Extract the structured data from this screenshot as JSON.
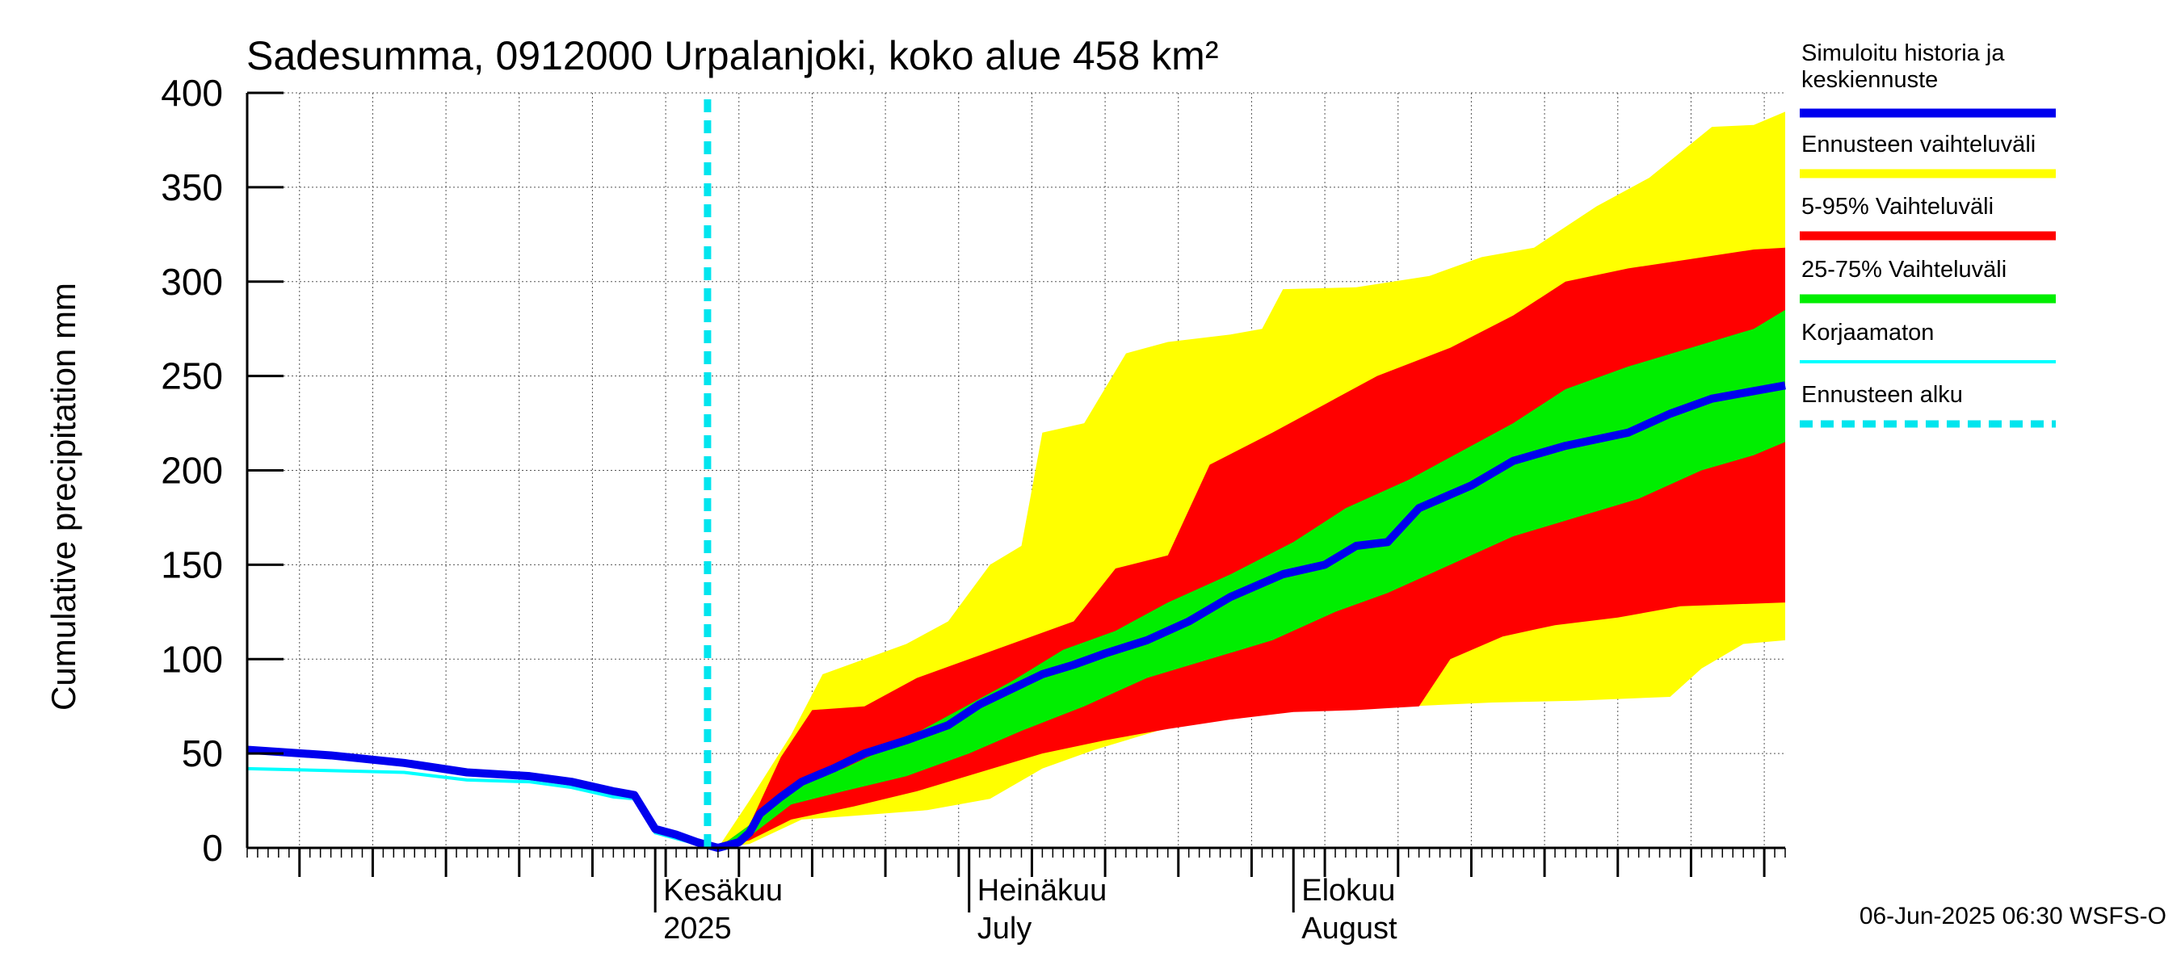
{
  "title": "Sadesumma, 0912000 Urpalanjoki, koko alue 458 km²",
  "footer": "06-Jun-2025 06:30 WSFS-O",
  "chart_data": {
    "type": "area",
    "title": "Sadesumma, 0912000 Urpalanjoki, koko alue 458 km²",
    "ylabel": "Cumulative precipitation   mm",
    "xlabel": "",
    "ylim": [
      0,
      400
    ],
    "yticks": [
      0,
      50,
      100,
      150,
      200,
      250,
      300,
      350,
      400
    ],
    "xlim": [
      "2025-04-23",
      "2025-09-17"
    ],
    "grid": true,
    "legend_position": "right",
    "x_axis_labels": [
      {
        "line1": "Kesäkuu",
        "line2": "2025",
        "date": "2025-06-01"
      },
      {
        "line1": "Heinäkuu",
        "line2": "July",
        "date": "2025-07-01"
      },
      {
        "line1": "Elokuu",
        "line2": "August",
        "date": "2025-08-01"
      }
    ],
    "forecast_start": "2025-06-06",
    "legend": [
      {
        "label1": "Simuloitu historia ja",
        "label2": "keskiennuste",
        "color": "#0000ee",
        "style": "thick"
      },
      {
        "label1": "Ennusteen vaihteluväli",
        "label2": "",
        "color": "#ffff00",
        "style": "thick"
      },
      {
        "label1": "5-95% Vaihteluväli",
        "label2": "",
        "color": "#ff0000",
        "style": "thick"
      },
      {
        "label1": "25-75% Vaihteluväli",
        "label2": "",
        "color": "#00ee00",
        "style": "thick"
      },
      {
        "label1": "Korjaamaton",
        "label2": "",
        "color": "#00ffff",
        "style": "thin"
      },
      {
        "label1": "Ennusteen alku",
        "label2": "",
        "color": "#00e5ee",
        "style": "dashed"
      }
    ],
    "series": [
      {
        "name": "Simuloitu historia ja keskiennuste",
        "color": "#0000ee",
        "points": [
          [
            "2025-04-23",
            52
          ],
          [
            "2025-05-01",
            49
          ],
          [
            "2025-05-08",
            45
          ],
          [
            "2025-05-14",
            40
          ],
          [
            "2025-05-20",
            38
          ],
          [
            "2025-05-24",
            35
          ],
          [
            "2025-05-28",
            30
          ],
          [
            "2025-05-30",
            28
          ],
          [
            "2025-06-01",
            10
          ],
          [
            "2025-06-03",
            7
          ],
          [
            "2025-06-05",
            3
          ],
          [
            "2025-06-07",
            0
          ],
          [
            "2025-06-09",
            3
          ],
          [
            "2025-06-10",
            8
          ],
          [
            "2025-06-11",
            18
          ],
          [
            "2025-06-13",
            27
          ],
          [
            "2025-06-15",
            35
          ],
          [
            "2025-06-18",
            42
          ],
          [
            "2025-06-21",
            50
          ],
          [
            "2025-06-25",
            57
          ],
          [
            "2025-06-29",
            65
          ],
          [
            "2025-07-02",
            76
          ],
          [
            "2025-07-05",
            84
          ],
          [
            "2025-07-08",
            92
          ],
          [
            "2025-07-11",
            97
          ],
          [
            "2025-07-14",
            103
          ],
          [
            "2025-07-18",
            110
          ],
          [
            "2025-07-22",
            120
          ],
          [
            "2025-07-26",
            133
          ],
          [
            "2025-07-31",
            145
          ],
          [
            "2025-08-04",
            150
          ],
          [
            "2025-08-07",
            160
          ],
          [
            "2025-08-10",
            162
          ],
          [
            "2025-08-13",
            180
          ],
          [
            "2025-08-18",
            192
          ],
          [
            "2025-08-22",
            205
          ],
          [
            "2025-08-27",
            213
          ],
          [
            "2025-09-02",
            220
          ],
          [
            "2025-09-06",
            230
          ],
          [
            "2025-09-10",
            238
          ],
          [
            "2025-09-14",
            242
          ],
          [
            "2025-09-17",
            245
          ]
        ]
      },
      {
        "name": "Korjaamaton",
        "color": "#00ffff",
        "points": [
          [
            "2025-04-23",
            42
          ],
          [
            "2025-05-08",
            40
          ],
          [
            "2025-05-14",
            36
          ],
          [
            "2025-05-20",
            35
          ],
          [
            "2025-05-24",
            32
          ],
          [
            "2025-05-28",
            27
          ],
          [
            "2025-05-30",
            26
          ],
          [
            "2025-06-01",
            8
          ],
          [
            "2025-06-03",
            5
          ],
          [
            "2025-06-05",
            2
          ],
          [
            "2025-06-07",
            0
          ]
        ]
      }
    ],
    "bands": [
      {
        "name": "Ennusteen vaihteluväli",
        "color": "#ffff00",
        "upper": [
          [
            "2025-06-07",
            0
          ],
          [
            "2025-06-10",
            25
          ],
          [
            "2025-06-14",
            60
          ],
          [
            "2025-06-17",
            92
          ],
          [
            "2025-06-21",
            100
          ],
          [
            "2025-06-25",
            108
          ],
          [
            "2025-06-29",
            120
          ],
          [
            "2025-07-03",
            150
          ],
          [
            "2025-07-06",
            160
          ],
          [
            "2025-07-08",
            220
          ],
          [
            "2025-07-12",
            225
          ],
          [
            "2025-07-16",
            262
          ],
          [
            "2025-07-20",
            268
          ],
          [
            "2025-07-26",
            272
          ],
          [
            "2025-07-29",
            275
          ],
          [
            "2025-07-31",
            296
          ],
          [
            "2025-08-07",
            297
          ],
          [
            "2025-08-14",
            303
          ],
          [
            "2025-08-19",
            313
          ],
          [
            "2025-08-24",
            318
          ],
          [
            "2025-08-30",
            340
          ],
          [
            "2025-09-04",
            355
          ],
          [
            "2025-09-10",
            382
          ],
          [
            "2025-09-14",
            383
          ],
          [
            "2025-09-17",
            390
          ]
        ],
        "lower": [
          [
            "2025-06-07",
            0
          ],
          [
            "2025-06-10",
            2
          ],
          [
            "2025-06-15",
            15
          ],
          [
            "2025-06-20",
            17
          ],
          [
            "2025-06-27",
            20
          ],
          [
            "2025-07-03",
            26
          ],
          [
            "2025-07-08",
            42
          ],
          [
            "2025-07-13",
            52
          ],
          [
            "2025-07-19",
            62
          ],
          [
            "2025-07-25",
            70
          ],
          [
            "2025-08-04",
            74
          ],
          [
            "2025-08-12",
            75
          ],
          [
            "2025-08-20",
            77
          ],
          [
            "2025-08-28",
            78
          ],
          [
            "2025-09-06",
            80
          ],
          [
            "2025-09-09",
            95
          ],
          [
            "2025-09-13",
            108
          ],
          [
            "2025-09-17",
            110
          ]
        ]
      },
      {
        "name": "5-95% Vaihteluväli",
        "color": "#ff0000",
        "upper": [
          [
            "2025-06-07",
            0
          ],
          [
            "2025-06-10",
            12
          ],
          [
            "2025-06-13",
            48
          ],
          [
            "2025-06-16",
            73
          ],
          [
            "2025-06-21",
            75
          ],
          [
            "2025-06-26",
            90
          ],
          [
            "2025-07-01",
            100
          ],
          [
            "2025-07-06",
            110
          ],
          [
            "2025-07-11",
            120
          ],
          [
            "2025-07-15",
            148
          ],
          [
            "2025-07-20",
            155
          ],
          [
            "2025-07-24",
            203
          ],
          [
            "2025-07-30",
            220
          ],
          [
            "2025-08-04",
            235
          ],
          [
            "2025-08-09",
            250
          ],
          [
            "2025-08-16",
            265
          ],
          [
            "2025-08-22",
            282
          ],
          [
            "2025-08-27",
            300
          ],
          [
            "2025-09-02",
            307
          ],
          [
            "2025-09-08",
            312
          ],
          [
            "2025-09-14",
            317
          ],
          [
            "2025-09-17",
            318
          ]
        ],
        "lower": [
          [
            "2025-06-07",
            0
          ],
          [
            "2025-06-10",
            4
          ],
          [
            "2025-06-14",
            15
          ],
          [
            "2025-06-20",
            22
          ],
          [
            "2025-06-26",
            30
          ],
          [
            "2025-07-02",
            40
          ],
          [
            "2025-07-08",
            50
          ],
          [
            "2025-07-14",
            57
          ],
          [
            "2025-07-20",
            63
          ],
          [
            "2025-07-26",
            68
          ],
          [
            "2025-08-01",
            72
          ],
          [
            "2025-08-07",
            73
          ],
          [
            "2025-08-10",
            74
          ],
          [
            "2025-08-13",
            75
          ],
          [
            "2025-08-16",
            100
          ],
          [
            "2025-08-21",
            112
          ],
          [
            "2025-08-26",
            118
          ],
          [
            "2025-09-01",
            122
          ],
          [
            "2025-09-07",
            128
          ],
          [
            "2025-09-17",
            130
          ]
        ]
      },
      {
        "name": "25-75% Vaihteluväli",
        "color": "#00ee00",
        "upper": [
          [
            "2025-06-07",
            0
          ],
          [
            "2025-06-10",
            12
          ],
          [
            "2025-06-14",
            33
          ],
          [
            "2025-06-19",
            42
          ],
          [
            "2025-06-24",
            55
          ],
          [
            "2025-06-30",
            73
          ],
          [
            "2025-07-05",
            88
          ],
          [
            "2025-07-10",
            105
          ],
          [
            "2025-07-15",
            115
          ],
          [
            "2025-07-20",
            130
          ],
          [
            "2025-07-26",
            145
          ],
          [
            "2025-08-01",
            162
          ],
          [
            "2025-08-06",
            180
          ],
          [
            "2025-08-12",
            195
          ],
          [
            "2025-08-17",
            210
          ],
          [
            "2025-08-22",
            225
          ],
          [
            "2025-08-27",
            243
          ],
          [
            "2025-09-02",
            255
          ],
          [
            "2025-09-08",
            265
          ],
          [
            "2025-09-14",
            275
          ],
          [
            "2025-09-17",
            285
          ]
        ],
        "lower": [
          [
            "2025-06-07",
            0
          ],
          [
            "2025-06-10",
            6
          ],
          [
            "2025-06-14",
            23
          ],
          [
            "2025-06-19",
            30
          ],
          [
            "2025-06-25",
            38
          ],
          [
            "2025-07-01",
            50
          ],
          [
            "2025-07-06",
            62
          ],
          [
            "2025-07-12",
            75
          ],
          [
            "2025-07-18",
            90
          ],
          [
            "2025-07-24",
            100
          ],
          [
            "2025-07-30",
            110
          ],
          [
            "2025-08-05",
            125
          ],
          [
            "2025-08-10",
            135
          ],
          [
            "2025-08-16",
            150
          ],
          [
            "2025-08-22",
            165
          ],
          [
            "2025-08-28",
            175
          ],
          [
            "2025-09-03",
            185
          ],
          [
            "2025-09-09",
            200
          ],
          [
            "2025-09-14",
            208
          ],
          [
            "2025-09-17",
            215
          ]
        ]
      }
    ]
  }
}
